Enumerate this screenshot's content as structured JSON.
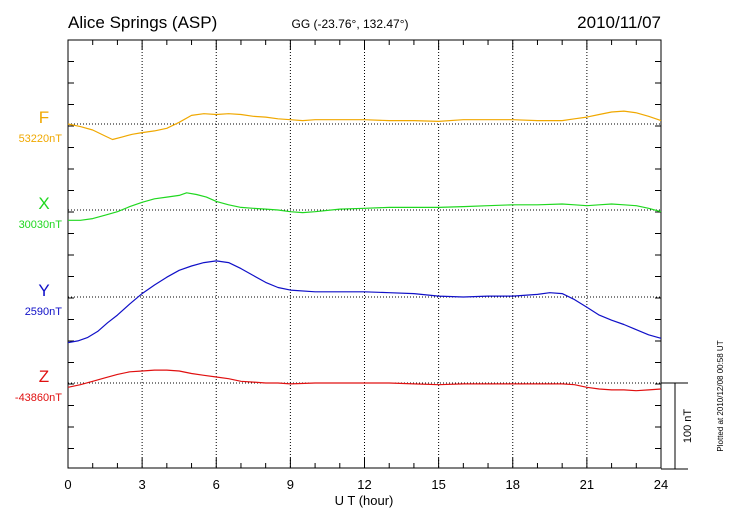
{
  "chart_data": {
    "type": "line",
    "title": "Alice Springs (ASP)",
    "coords": "GG (-23.76°, 132.47°)",
    "date": "2010/11/07",
    "xlabel": "U T (hour)",
    "xlim": [
      0,
      24
    ],
    "xticks": [
      "0",
      "3",
      "6",
      "9",
      "12",
      "15",
      "18",
      "21",
      "24"
    ],
    "scale_label": "100 nT",
    "scale_nT": 100,
    "plot_note": "Plotted at 2010/12/08 00:58 UT",
    "grid": true,
    "series": [
      {
        "name": "F",
        "baseline": "53220nT",
        "color": "#f0a800",
        "x": [
          0,
          0.5,
          1,
          1.5,
          1.8,
          2.2,
          2.6,
          3,
          3.5,
          4,
          4.5,
          5,
          5.5,
          6,
          6.5,
          7,
          7.5,
          8,
          8.5,
          9,
          9.5,
          10,
          11,
          12,
          13,
          14,
          15,
          16,
          17,
          18,
          19,
          20,
          20.5,
          21,
          21.5,
          22,
          22.5,
          23,
          23.5,
          24
        ],
        "y": [
          0,
          -3,
          -7,
          -14,
          -18,
          -15,
          -12,
          -10,
          -8,
          -5,
          2,
          10,
          12,
          11,
          12,
          11,
          9,
          8,
          6,
          5,
          4,
          5,
          5,
          5,
          4,
          4,
          3,
          5,
          5,
          5,
          4,
          4,
          6,
          8,
          11,
          14,
          15,
          13,
          9,
          4
        ]
      },
      {
        "name": "X",
        "baseline": "30030nT",
        "color": "#20d820",
        "x": [
          0,
          0.5,
          1,
          1.5,
          2,
          2.5,
          3,
          3.5,
          4,
          4.5,
          4.8,
          5.2,
          5.6,
          6,
          6.5,
          7,
          7.5,
          8,
          8.5,
          9,
          9.5,
          10,
          11,
          12,
          13,
          14,
          15,
          16,
          17,
          18,
          19,
          20,
          20.5,
          21,
          21.5,
          22,
          22.5,
          23,
          23.5,
          24
        ],
        "y": [
          -12,
          -12,
          -10,
          -6,
          -2,
          4,
          9,
          13,
          15,
          17,
          20,
          18,
          15,
          10,
          6,
          3,
          2,
          1,
          0,
          -2,
          -3,
          -2,
          1,
          2,
          3,
          3,
          3,
          4,
          5,
          6,
          6,
          7,
          6,
          5,
          6,
          7,
          6,
          5,
          2,
          -2
        ]
      },
      {
        "name": "Y",
        "baseline": "2590nT",
        "color": "#1010c8",
        "x": [
          0,
          0.4,
          0.8,
          1.2,
          1.6,
          2,
          2.5,
          3,
          3.5,
          4,
          4.5,
          5,
          5.5,
          6,
          6.5,
          7,
          7.5,
          8,
          8.5,
          9,
          10,
          11,
          12,
          13,
          14,
          15,
          16,
          17,
          18,
          19,
          19.5,
          20,
          20.5,
          21,
          21.5,
          22,
          22.5,
          23,
          23.5,
          24
        ],
        "y": [
          -53,
          -51,
          -47,
          -40,
          -30,
          -21,
          -8,
          4,
          14,
          23,
          31,
          36,
          40,
          42,
          40,
          33,
          25,
          17,
          11,
          8,
          6,
          6,
          6,
          5,
          4,
          1,
          0,
          1,
          1,
          3,
          5,
          4,
          -3,
          -12,
          -21,
          -27,
          -32,
          -38,
          -44,
          -48
        ]
      },
      {
        "name": "Z",
        "baseline": "-43860nT",
        "color": "#e01010",
        "x": [
          0,
          0.5,
          1,
          1.5,
          2,
          2.5,
          3,
          3.5,
          4,
          4.5,
          5,
          5.5,
          6,
          6.5,
          7,
          7.5,
          8,
          8.5,
          9,
          10,
          11,
          12,
          13,
          14,
          15,
          16,
          17,
          18,
          19,
          20,
          20.5,
          21,
          21.5,
          22,
          22.5,
          23,
          23.5,
          24
        ],
        "y": [
          -5,
          -2,
          2,
          6,
          10,
          13,
          14,
          15,
          15,
          14,
          11,
          9,
          7,
          5,
          2,
          1,
          0,
          0,
          -1,
          0,
          0,
          0,
          0,
          -1,
          -2,
          -1,
          -1,
          -1,
          -1,
          -1,
          -2,
          -5,
          -7,
          -8,
          -8,
          -9,
          -8,
          -7
        ]
      }
    ]
  }
}
